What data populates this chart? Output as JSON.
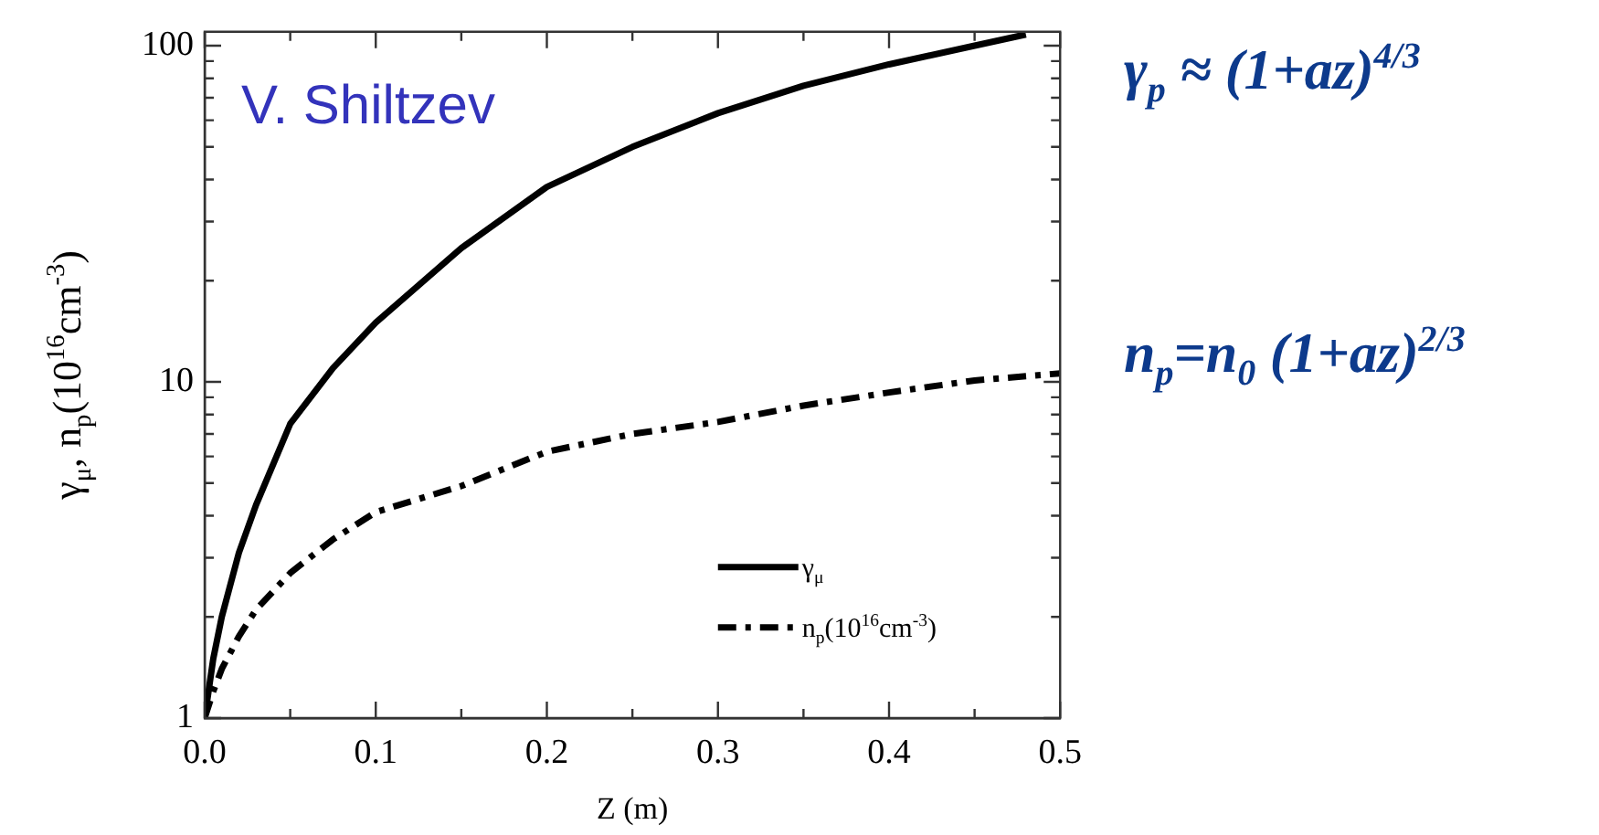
{
  "chart_data": {
    "type": "line",
    "xlabel": "Z (m)",
    "ylabel": "γ$_{μ}$, n$_{p}$(10$^{16}$cm$^{-3}$)",
    "x": [
      0,
      0.005,
      0.01,
      0.02,
      0.03,
      0.05,
      0.075,
      0.1,
      0.15,
      0.2,
      0.25,
      0.3,
      0.35,
      0.4,
      0.45,
      0.48,
      0.5
    ],
    "series": [
      {
        "name": "γ$_{μ}$",
        "color": "#000000",
        "line_style": "solid",
        "values": [
          1,
          1.5,
          2.0,
          3.1,
          4.3,
          7.5,
          11,
          15,
          25,
          38,
          50,
          63,
          76,
          88,
          100,
          108,
          null
        ]
      },
      {
        "name": "n$_{p}$(10$^{16}$cm$^{-3}$)",
        "color": "#000000",
        "line_style": "dashed",
        "values": [
          1,
          1.2,
          1.4,
          1.75,
          2.1,
          2.7,
          3.4,
          4.1,
          4.9,
          6.2,
          7.0,
          7.6,
          8.5,
          9.3,
          10.1,
          10.4,
          10.6
        ]
      }
    ],
    "log": "y",
    "xlim": [
      0,
      0.5
    ],
    "ylim": [
      1,
      110
    ],
    "xticks": [
      {
        "value": 0,
        "label": "0.0"
      },
      {
        "value": 0.05,
        "label": null
      },
      0.1,
      {
        "value": 0.15,
        "label": null
      },
      0.2,
      {
        "value": 0.25,
        "label": null
      },
      0.3,
      {
        "value": 0.35,
        "label": null
      },
      0.4,
      {
        "value": 0.45,
        "label": null
      },
      0.5
    ],
    "yticks": [
      1,
      {
        "value": 2,
        "label": null
      },
      {
        "value": 3,
        "label": null
      },
      {
        "value": 4,
        "label": null
      },
      {
        "value": 5,
        "label": null
      },
      {
        "value": 6,
        "label": null
      },
      {
        "value": 7,
        "label": null
      },
      {
        "value": 8,
        "label": null
      },
      {
        "value": 9,
        "label": null
      },
      10,
      {
        "value": 20,
        "label": null
      },
      {
        "value": 30,
        "label": null
      },
      {
        "value": 40,
        "label": null
      },
      {
        "value": 50,
        "label": null
      },
      {
        "value": 60,
        "label": null
      },
      {
        "value": 70,
        "label": null
      },
      {
        "value": 80,
        "label": null
      },
      {
        "value": 90,
        "label": null
      },
      100
    ],
    "grid": false,
    "legend": "bottom right",
    "marker": "none",
    "annotations": [
      "V. Shiltzev",
      "γ$_{p}$ ≈ (1+az)$^{4/3}$",
      "n$_{p}$=n$_{0}$ (1+az)$^{2/3}$"
    ]
  }
}
